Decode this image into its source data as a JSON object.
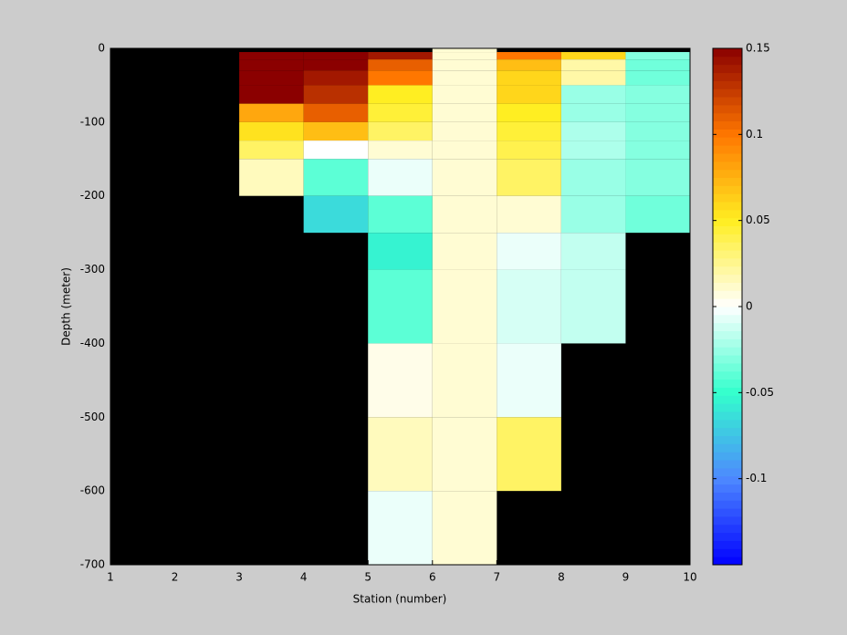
{
  "chart_data": {
    "type": "heatmap",
    "xlabel": "Station (number)",
    "ylabel": "Depth (meter)",
    "x": [
      1,
      2,
      3,
      4,
      5,
      6,
      7,
      8,
      9,
      10
    ],
    "y": [
      0,
      -5,
      -15,
      -30,
      -50,
      -75,
      -100,
      -125,
      -150,
      -200,
      -250,
      -300,
      -400,
      -500,
      -600,
      -700
    ],
    "values": [
      [
        null,
        null,
        null,
        null,
        null,
        0.01,
        null,
        null,
        null
      ],
      [
        null,
        null,
        0.15,
        0.15,
        0.14,
        0.01,
        0.1,
        0.06,
        -0.03
      ],
      [
        null,
        null,
        0.15,
        0.15,
        0.11,
        0.01,
        0.07,
        0.02,
        -0.035
      ],
      [
        null,
        null,
        0.15,
        0.14,
        0.1,
        0.01,
        0.06,
        0.02,
        -0.035
      ],
      [
        null,
        null,
        0.15,
        0.13,
        0.05,
        0.01,
        0.06,
        -0.025,
        -0.03
      ],
      [
        null,
        null,
        0.08,
        0.11,
        0.045,
        0.01,
        0.05,
        -0.025,
        -0.03
      ],
      [
        null,
        null,
        0.055,
        0.07,
        0.035,
        0.01,
        0.045,
        -0.02,
        -0.03
      ],
      [
        null,
        null,
        0.035,
        0,
        0.01,
        0.01,
        0.04,
        -0.02,
        -0.03
      ],
      [
        null,
        null,
        0.015,
        -0.04,
        -0.005,
        0.01,
        0.035,
        -0.025,
        -0.03
      ],
      [
        null,
        null,
        null,
        -0.065,
        -0.04,
        0.01,
        0.01,
        -0.025,
        -0.035
      ],
      [
        null,
        null,
        null,
        null,
        -0.055,
        0.01,
        -0.005,
        -0.015,
        null
      ],
      [
        null,
        null,
        null,
        null,
        -0.04,
        0.01,
        -0.01,
        -0.015,
        null
      ],
      [
        null,
        null,
        null,
        null,
        0.005,
        0.01,
        -0.005,
        null,
        null
      ],
      [
        null,
        null,
        null,
        null,
        0.015,
        0.01,
        0.035,
        null,
        null
      ],
      [
        null,
        null,
        null,
        null,
        -0.005,
        0.01,
        null,
        null,
        null
      ]
    ],
    "xlim": [
      1,
      10
    ],
    "ylim": [
      -700,
      0
    ],
    "xticks": [
      1,
      2,
      3,
      4,
      5,
      6,
      7,
      8,
      9,
      10
    ],
    "yticks": [
      0,
      -100,
      -200,
      -300,
      -400,
      -500,
      -600,
      -700
    ],
    "clim": [
      -0.15,
      0.15
    ],
    "cticks": [
      0.15,
      0.1,
      0.05,
      0,
      -0.05,
      -0.1
    ],
    "colormap": [
      "#0000ff",
      "#4d88ff",
      "#33ffcc",
      "#ffffff",
      "#ffee22",
      "#ff7700",
      "#8b0000"
    ],
    "missing_color": "#000000"
  }
}
